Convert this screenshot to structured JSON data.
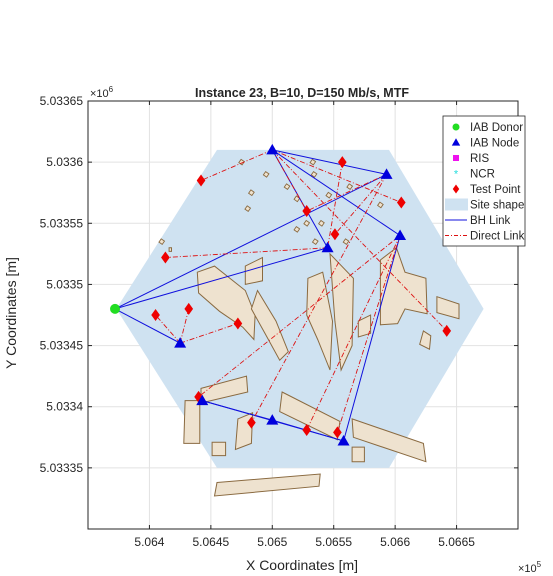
{
  "chart_data": {
    "type": "scatter",
    "title": "Instance 23, B=10, D=150 Mb/s, MTF",
    "xlabel": "X Coordinates [m]",
    "ylabel": "Y Coordinates [m]",
    "x_exponent_label": "×10",
    "x_exponent_power": "5",
    "y_exponent_label": "×10",
    "y_exponent_power": "6",
    "xlim": [
      5.0635,
      5.067
    ],
    "ylim": [
      5.0333,
      5.03365
    ],
    "x_ticks": [
      5.064,
      5.0645,
      5.065,
      5.0655,
      5.066,
      5.0665
    ],
    "x_tick_labels": [
      "5.064",
      "5.0645",
      "5.065",
      "5.0655",
      "5.066",
      "5.0665"
    ],
    "y_ticks": [
      5.03335,
      5.0334,
      5.03345,
      5.0335,
      5.03355,
      5.0336,
      5.03365
    ],
    "y_tick_labels": [
      "5.03335",
      "5.0334",
      "5.03345",
      "5.0335",
      "5.03355",
      "5.0336",
      "5.03365"
    ],
    "grid": true,
    "legend_position": "top-right",
    "colors": {
      "donor": "#22dd22",
      "node": "#0000dd",
      "ris": "#ee11ee",
      "ncr": "#22dddd",
      "test_point": "#ee0000",
      "site": "#cfe2f1",
      "building_fill": "#eee2cf",
      "building_edge": "#8a6a40",
      "bh_link": "#1010dd",
      "direct_link": "#dd1111"
    },
    "legend": [
      {
        "key": "donor",
        "label": "IAB Donor"
      },
      {
        "key": "node",
        "label": "IAB Node"
      },
      {
        "key": "ris",
        "label": "RIS"
      },
      {
        "key": "ncr",
        "label": "NCR"
      },
      {
        "key": "test_point",
        "label": "Test Point"
      },
      {
        "key": "site",
        "label": "Site shape"
      },
      {
        "key": "bh_link",
        "label": "BH Link"
      },
      {
        "key": "direct_link",
        "label": "Direct Link"
      }
    ],
    "site_shape": [
      [
        5.06455,
        5.03361
      ],
      [
        5.06595,
        5.03361
      ],
      [
        5.06672,
        5.03348
      ],
      [
        5.06595,
        5.03335
      ],
      [
        5.06455,
        5.03335
      ],
      [
        5.06373,
        5.03348
      ]
    ],
    "iab_donor": [
      {
        "x": 5.06372,
        "y": 5.03348
      }
    ],
    "iab_nodes": [
      {
        "x": 5.065,
        "y": 5.03361
      },
      {
        "x": 5.06593,
        "y": 5.03359
      },
      {
        "x": 5.06604,
        "y": 5.03354
      },
      {
        "x": 5.06545,
        "y": 5.03353
      },
      {
        "x": 5.06425,
        "y": 5.033452
      },
      {
        "x": 5.06443,
        "y": 5.033405
      },
      {
        "x": 5.065,
        "y": 5.033389
      },
      {
        "x": 5.06558,
        "y": 5.033372
      }
    ],
    "test_points": [
      {
        "x": 5.06442,
        "y": 5.033585
      },
      {
        "x": 5.06413,
        "y": 5.033522
      },
      {
        "x": 5.06405,
        "y": 5.033475
      },
      {
        "x": 5.06432,
        "y": 5.03348
      },
      {
        "x": 5.06472,
        "y": 5.033468
      },
      {
        "x": 5.06528,
        "y": 5.03356
      },
      {
        "x": 5.06557,
        "y": 5.0336
      },
      {
        "x": 5.06605,
        "y": 5.033567
      },
      {
        "x": 5.06551,
        "y": 5.033541
      },
      {
        "x": 5.06642,
        "y": 5.033462
      },
      {
        "x": 5.0644,
        "y": 5.033408
      },
      {
        "x": 5.06483,
        "y": 5.033387
      },
      {
        "x": 5.06528,
        "y": 5.033381
      },
      {
        "x": 5.06553,
        "y": 5.033379
      }
    ],
    "bh_links": [
      [
        [
          5.06372,
          5.03348
        ],
        [
          5.06593,
          5.03359
        ]
      ],
      [
        [
          5.06372,
          5.03348
        ],
        [
          5.06545,
          5.03353
        ]
      ],
      [
        [
          5.06372,
          5.03348
        ],
        [
          5.06425,
          5.033452
        ]
      ],
      [
        [
          5.065,
          5.03361
        ],
        [
          5.06593,
          5.03359
        ]
      ],
      [
        [
          5.065,
          5.03361
        ],
        [
          5.06604,
          5.03354
        ]
      ],
      [
        [
          5.065,
          5.03361
        ],
        [
          5.06545,
          5.03353
        ]
      ],
      [
        [
          5.06604,
          5.03354
        ],
        [
          5.06558,
          5.033372
        ]
      ],
      [
        [
          5.06443,
          5.033405
        ],
        [
          5.065,
          5.033389
        ]
      ],
      [
        [
          5.065,
          5.033389
        ],
        [
          5.06558,
          5.033372
        ]
      ],
      [
        [
          5.06443,
          5.033405
        ],
        [
          5.06558,
          5.033372
        ]
      ]
    ],
    "direct_links": [
      [
        [
          5.065,
          5.03361
        ],
        [
          5.06442,
          5.033585
        ]
      ],
      [
        [
          5.065,
          5.03361
        ],
        [
          5.06528,
          5.03356
        ]
      ],
      [
        [
          5.065,
          5.03361
        ],
        [
          5.06605,
          5.033567
        ]
      ],
      [
        [
          5.065,
          5.03361
        ],
        [
          5.06642,
          5.033462
        ]
      ],
      [
        [
          5.06593,
          5.03359
        ],
        [
          5.06551,
          5.033541
        ]
      ],
      [
        [
          5.06593,
          5.03359
        ],
        [
          5.06528,
          5.03356
        ]
      ],
      [
        [
          5.06593,
          5.03359
        ],
        [
          5.06483,
          5.033387
        ]
      ],
      [
        [
          5.06604,
          5.03354
        ],
        [
          5.06528,
          5.033381
        ]
      ],
      [
        [
          5.06604,
          5.03354
        ],
        [
          5.06553,
          5.033379
        ]
      ],
      [
        [
          5.06604,
          5.03354
        ],
        [
          5.0644,
          5.033408
        ]
      ],
      [
        [
          5.06545,
          5.03353
        ],
        [
          5.06413,
          5.033522
        ]
      ],
      [
        [
          5.06557,
          5.0336
        ],
        [
          5.06545,
          5.03353
        ]
      ],
      [
        [
          5.06425,
          5.033452
        ],
        [
          5.06405,
          5.033475
        ]
      ],
      [
        [
          5.06425,
          5.033452
        ],
        [
          5.06432,
          5.03348
        ]
      ],
      [
        [
          5.06425,
          5.033452
        ],
        [
          5.06472,
          5.033468
        ]
      ]
    ],
    "buildings": [
      [
        [
          5.06439,
          5.03351
        ],
        [
          5.06453,
          5.033515
        ],
        [
          5.06478,
          5.033495
        ],
        [
          5.06486,
          5.033475
        ],
        [
          5.06485,
          5.033455
        ],
        [
          5.06476,
          5.033465
        ],
        [
          5.06457,
          5.033478
        ],
        [
          5.0644,
          5.033493
        ]
      ],
      [
        [
          5.06478,
          5.033515
        ],
        [
          5.06492,
          5.033522
        ],
        [
          5.06492,
          5.033503
        ],
        [
          5.06478,
          5.0335
        ]
      ],
      [
        [
          5.06488,
          5.033495
        ],
        [
          5.06503,
          5.03347
        ],
        [
          5.06513,
          5.033445
        ],
        [
          5.06506,
          5.033438
        ],
        [
          5.06494,
          5.03346
        ],
        [
          5.06483,
          5.03348
        ]
      ],
      [
        [
          5.06529,
          5.033505
        ],
        [
          5.06541,
          5.03351
        ],
        [
          5.06549,
          5.03347
        ],
        [
          5.06547,
          5.03343
        ],
        [
          5.06537,
          5.033455
        ],
        [
          5.06528,
          5.033475
        ]
      ],
      [
        [
          5.06547,
          5.033525
        ],
        [
          5.06566,
          5.033505
        ],
        [
          5.06565,
          5.03345
        ],
        [
          5.06556,
          5.03343
        ],
        [
          5.06551,
          5.03347
        ]
      ],
      [
        [
          5.0657,
          5.03347
        ],
        [
          5.0658,
          5.033475
        ],
        [
          5.0658,
          5.03346
        ],
        [
          5.0657,
          5.033457
        ]
      ],
      [
        [
          5.06588,
          5.03352
        ],
        [
          5.06601,
          5.03353
        ],
        [
          5.06608,
          5.03351
        ],
        [
          5.06625,
          5.033505
        ],
        [
          5.06626,
          5.033476
        ],
        [
          5.06608,
          5.03348
        ],
        [
          5.06602,
          5.033468
        ],
        [
          5.06588,
          5.033467
        ]
      ],
      [
        [
          5.06634,
          5.03349
        ],
        [
          5.06652,
          5.033484
        ],
        [
          5.06652,
          5.033472
        ],
        [
          5.06634,
          5.033477
        ]
      ],
      [
        [
          5.06623,
          5.033462
        ],
        [
          5.06629,
          5.033458
        ],
        [
          5.06628,
          5.033447
        ],
        [
          5.0662,
          5.033451
        ]
      ],
      [
        [
          5.06442,
          5.033415
        ],
        [
          5.06479,
          5.033425
        ],
        [
          5.0648,
          5.033412
        ],
        [
          5.06442,
          5.033403
        ]
      ],
      [
        [
          5.06429,
          5.033405
        ],
        [
          5.06441,
          5.033405
        ],
        [
          5.06441,
          5.03337
        ],
        [
          5.06428,
          5.03337
        ]
      ],
      [
        [
          5.06472,
          5.03339
        ],
        [
          5.06484,
          5.033395
        ],
        [
          5.06483,
          5.03337
        ],
        [
          5.0647,
          5.033365
        ]
      ],
      [
        [
          5.06451,
          5.033371
        ],
        [
          5.06462,
          5.033371
        ],
        [
          5.06462,
          5.03336
        ],
        [
          5.06451,
          5.03336
        ]
      ],
      [
        [
          5.06508,
          5.033412
        ],
        [
          5.06555,
          5.033388
        ],
        [
          5.06553,
          5.033373
        ],
        [
          5.06506,
          5.033396
        ]
      ],
      [
        [
          5.06565,
          5.03339
        ],
        [
          5.06623,
          5.03337
        ],
        [
          5.06625,
          5.033355
        ],
        [
          5.06566,
          5.033375
        ]
      ],
      [
        [
          5.06565,
          5.033367
        ],
        [
          5.06575,
          5.033367
        ],
        [
          5.06575,
          5.033355
        ],
        [
          5.06565,
          5.033355
        ]
      ],
      [
        [
          5.06455,
          5.033338
        ],
        [
          5.06539,
          5.033345
        ],
        [
          5.06538,
          5.033335
        ],
        [
          5.06453,
          5.033327
        ]
      ],
      [
        [
          5.06416,
          5.033527
        ],
        [
          5.06418,
          5.033527
        ],
        [
          5.06418,
          5.03353
        ],
        [
          5.06416,
          5.03353
        ]
      ]
    ],
    "small_structures": [
      [
        5.06495,
        5.03359
      ],
      [
        5.06483,
        5.033575
      ],
      [
        5.0648,
        5.033562
      ],
      [
        5.0652,
        5.03357
      ],
      [
        5.06528,
        5.03355
      ],
      [
        5.06534,
        5.03359
      ],
      [
        5.06546,
        5.033573
      ],
      [
        5.0654,
        5.03355
      ],
      [
        5.0652,
        5.033545
      ],
      [
        5.06535,
        5.033535
      ],
      [
        5.06563,
        5.03358
      ],
      [
        5.06533,
        5.0336
      ],
      [
        5.06475,
        5.0336
      ],
      [
        5.0641,
        5.033535
      ],
      [
        5.06588,
        5.033565
      ],
      [
        5.06512,
        5.03358
      ],
      [
        5.0656,
        5.033535
      ]
    ]
  }
}
